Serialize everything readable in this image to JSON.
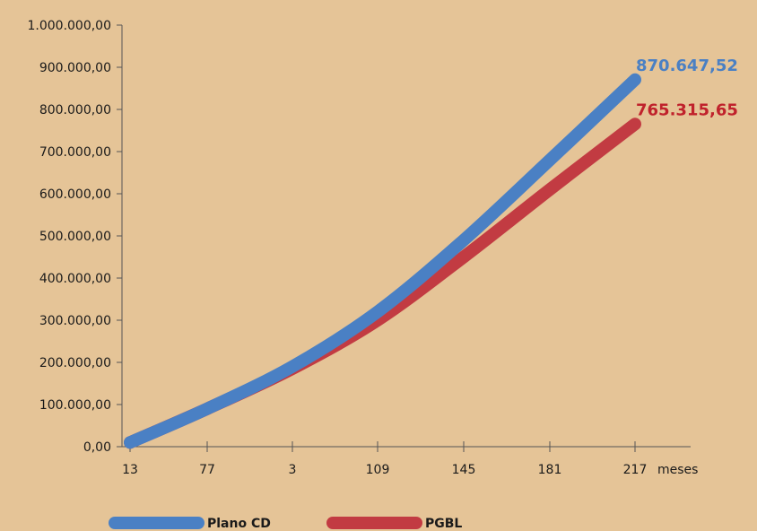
{
  "chart_data": {
    "type": "line",
    "x_ticks": [
      "13",
      "77",
      "3",
      "109",
      "145",
      "181",
      "217"
    ],
    "x_unit": "meses",
    "y_ticks": [
      "0,00",
      "100.000,00",
      "200.000,00",
      "300.000,00",
      "400.000,00",
      "500.000,00",
      "600.000,00",
      "700.000,00",
      "800.000,00",
      "900.000,00",
      "1.000.000,00"
    ],
    "ylim": [
      0,
      1000000
    ],
    "grid": false,
    "legend_position": "bottom",
    "series": [
      {
        "name": "Plano CD",
        "color": "#4a80c4",
        "end_label": "870.647,52",
        "end_label_color": "#4a80c4",
        "values": [
          10000,
          90000,
          190000,
          320000,
          490000,
          680000,
          870647.52
        ]
      },
      {
        "name": "PGBL",
        "color": "#c23b42",
        "end_label": "765.315,65",
        "end_label_color": "#c0222c",
        "values": [
          10000,
          90000,
          185000,
          300000,
          450000,
          610000,
          765315.65
        ]
      }
    ]
  }
}
